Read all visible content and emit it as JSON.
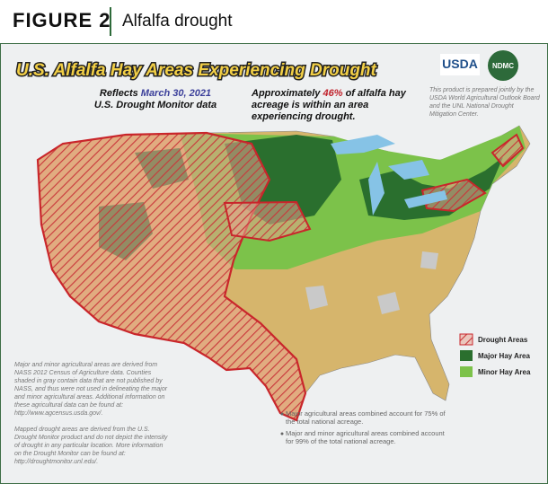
{
  "header": {
    "figure": "FIGURE 2",
    "title": "Alfalfa drought"
  },
  "map": {
    "title": "U.S. Alfalfa Hay Areas Experiencing Drought",
    "reflects": {
      "prefix": "Reflects",
      "date": "March 30, 2021",
      "suffix": "U.S. Drought Monitor data"
    },
    "summary": {
      "prefix": "Approximately",
      "percent": "46%",
      "suffix": "of alfalfa hay acreage is within an area experiencing drought."
    },
    "logos": [
      "USDA",
      "NDMC"
    ],
    "credit": "This product is prepared jointly by the USDA World Agricultural Outlook Board and the UNL National Drought Mitigation Center.",
    "legend": [
      "Drought Areas",
      "Major Hay Area",
      "Minor Hay Area"
    ],
    "notes": [
      "Major and minor agricultural areas are derived from NASS 2012 Census of Agriculture data. Counties shaded in gray contain data that are not published by NASS, and thus were not used in delineating the major and minor agricultural areas. Additional information on these agricultural data can be found at: http://www.agcensus.usda.gov/.",
      "Mapped drought areas are derived from the U.S. Drought Monitor product and do not depict the intensity of drought in any particular location. More information on the Drought Monitor can be found at: http://droughtmonitor.unl.edu/."
    ],
    "bullets": [
      "Major agricultural areas combined account for 75% of the total national acreage.",
      "Major and minor agricultural areas combined account for 99% of the total national acreage."
    ]
  }
}
